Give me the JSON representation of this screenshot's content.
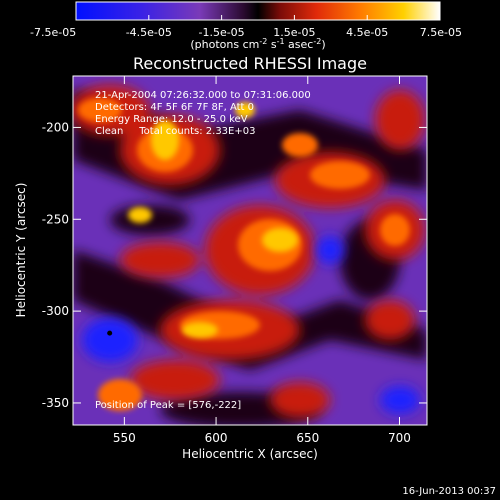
{
  "colorbar": {
    "tick_labels": [
      "-7.5e-05",
      "-4.5e-05",
      "-1.5e-05",
      "1.5e-05",
      "4.5e-05",
      "7.5e-05"
    ],
    "tick_values": [
      -7.5e-05,
      -4.5e-05,
      -1.5e-05,
      1.5e-05,
      4.5e-05,
      7.5e-05
    ],
    "range": [
      -7.5e-05,
      7.5e-05
    ],
    "units_label_text": "(photons cm",
    "units_exp1": "-2",
    "units_mid": " s",
    "units_exp2": "-1",
    "units_mid2": " asec",
    "units_exp3": "-2",
    "units_close": ")"
  },
  "chart_data": {
    "type": "heatmap",
    "title": "Reconstructed RHESSI Image",
    "xlabel": "Heliocentric X (arcsec)",
    "ylabel": "Heliocentric Y (arcsec)",
    "xlim": [
      522,
      715
    ],
    "ylim": [
      -362,
      -172
    ],
    "x_ticks": [
      550,
      600,
      650,
      700
    ],
    "y_ticks": [
      -200,
      -250,
      -300,
      -350
    ],
    "value_range": [
      -7.5e-05,
      7.5e-05
    ],
    "colormap": [
      "#0000ff",
      "#5a2fd0",
      "#7d3cb8",
      "#000000",
      "#c81e0a",
      "#ff6a00",
      "#ffc800",
      "#ffffff"
    ],
    "annotations": [
      "21-Apr-2004 07:26:32.000 to 07:31:06.000",
      "Detectors: 4F 5F 6F 7F 8F, Att 0",
      "Energy Range: 12.0 - 25.0 keV",
      "Clean     Total counts: 2.33E+03"
    ],
    "peak_label": "Position of Peak = [576,-222]",
    "peak": [
      576,
      -222
    ],
    "marker": [
      542,
      -312
    ]
  },
  "footer": {
    "date": "16-Jun-2013 00:37"
  }
}
